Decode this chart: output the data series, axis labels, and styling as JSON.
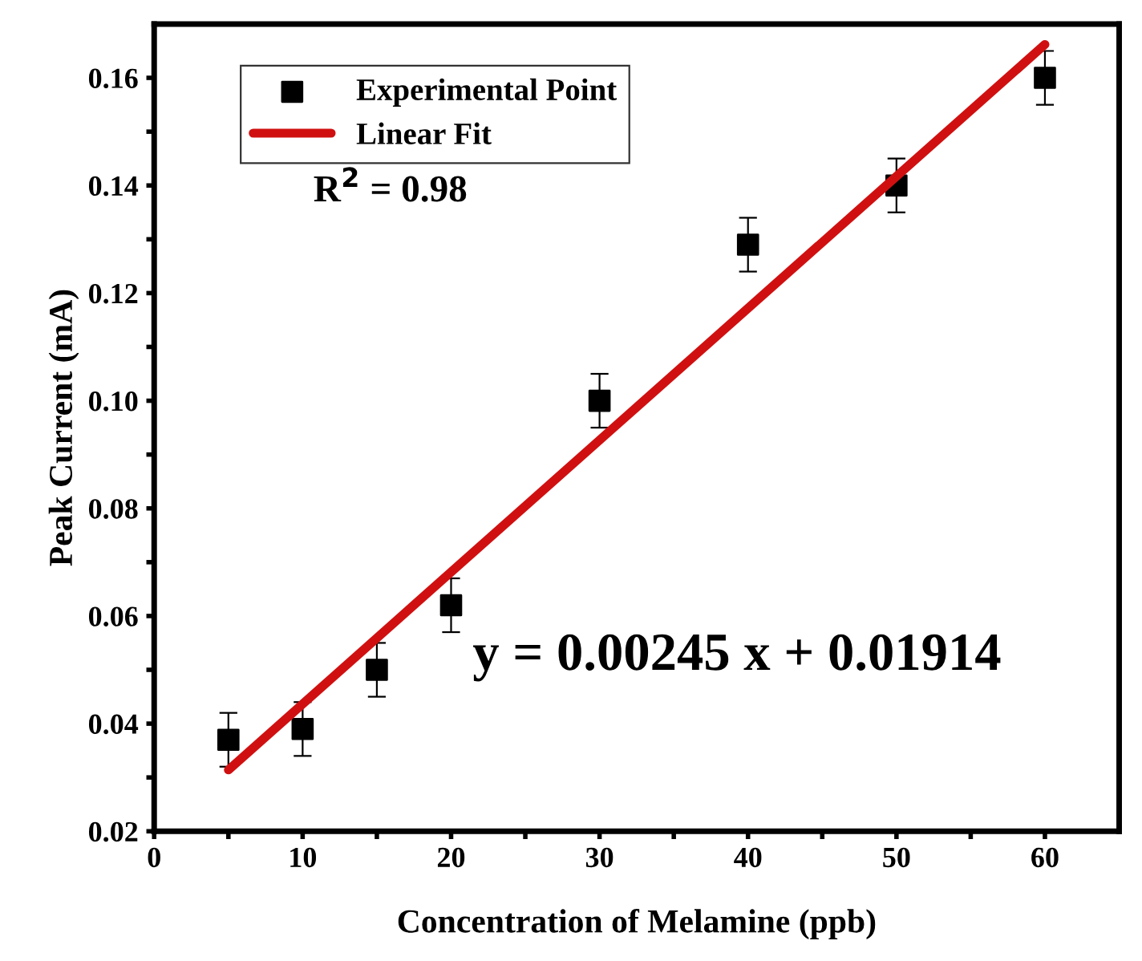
{
  "chart_data": {
    "type": "scatter",
    "xlabel": "Concentration of Melamine (ppb)",
    "ylabel": "Peak Current (mA)",
    "xlim": [
      0,
      65
    ],
    "ylim": [
      0.02,
      0.17
    ],
    "xticks": [
      0,
      {
        "value": 5,
        "label": null
      },
      10,
      {
        "value": 15,
        "label": null
      },
      20,
      {
        "value": 25,
        "label": null
      },
      30,
      {
        "value": 35,
        "label": null
      },
      40,
      {
        "value": 45,
        "label": null
      },
      50,
      {
        "value": 55,
        "label": null
      },
      60
    ],
    "yticks": [
      {
        "value": 0.02,
        "label": "0.02"
      },
      {
        "value": 0.03,
        "label": null
      },
      {
        "value": 0.04,
        "label": "0.04"
      },
      {
        "value": 0.05,
        "label": null
      },
      {
        "value": 0.06,
        "label": "0.06"
      },
      {
        "value": 0.07,
        "label": null
      },
      {
        "value": 0.08,
        "label": "0.08"
      },
      {
        "value": 0.09,
        "label": null
      },
      {
        "value": 0.1,
        "label": "0.10"
      },
      {
        "value": 0.11,
        "label": null
      },
      {
        "value": 0.12,
        "label": "0.12"
      },
      {
        "value": 0.13,
        "label": null
      },
      {
        "value": 0.14,
        "label": "0.14"
      },
      {
        "value": 0.15,
        "label": null
      },
      {
        "value": 0.16,
        "label": "0.16"
      }
    ],
    "grid": false,
    "legend": "top left",
    "series": [
      {
        "name": "Experimental Point",
        "marker": "square",
        "color": "#000000",
        "x": [
          5,
          10,
          15,
          20,
          30,
          40,
          50,
          60
        ],
        "values": [
          0.037,
          0.039,
          0.05,
          0.062,
          0.1,
          0.129,
          0.14,
          0.16
        ],
        "errors": [
          0.005,
          0.005,
          0.005,
          0.005,
          0.005,
          0.005,
          0.005,
          0.005
        ]
      },
      {
        "name": "Linear Fit",
        "type": "line",
        "marker": "none",
        "color": "#d01010",
        "x": [
          5,
          60
        ],
        "values": [
          0.0314,
          0.1662
        ]
      }
    ],
    "annotations": [
      {
        "text": "R$^{2}$ = 0.98"
      },
      {
        "text": "y = 0.00245 x + 0.01914"
      }
    ]
  }
}
